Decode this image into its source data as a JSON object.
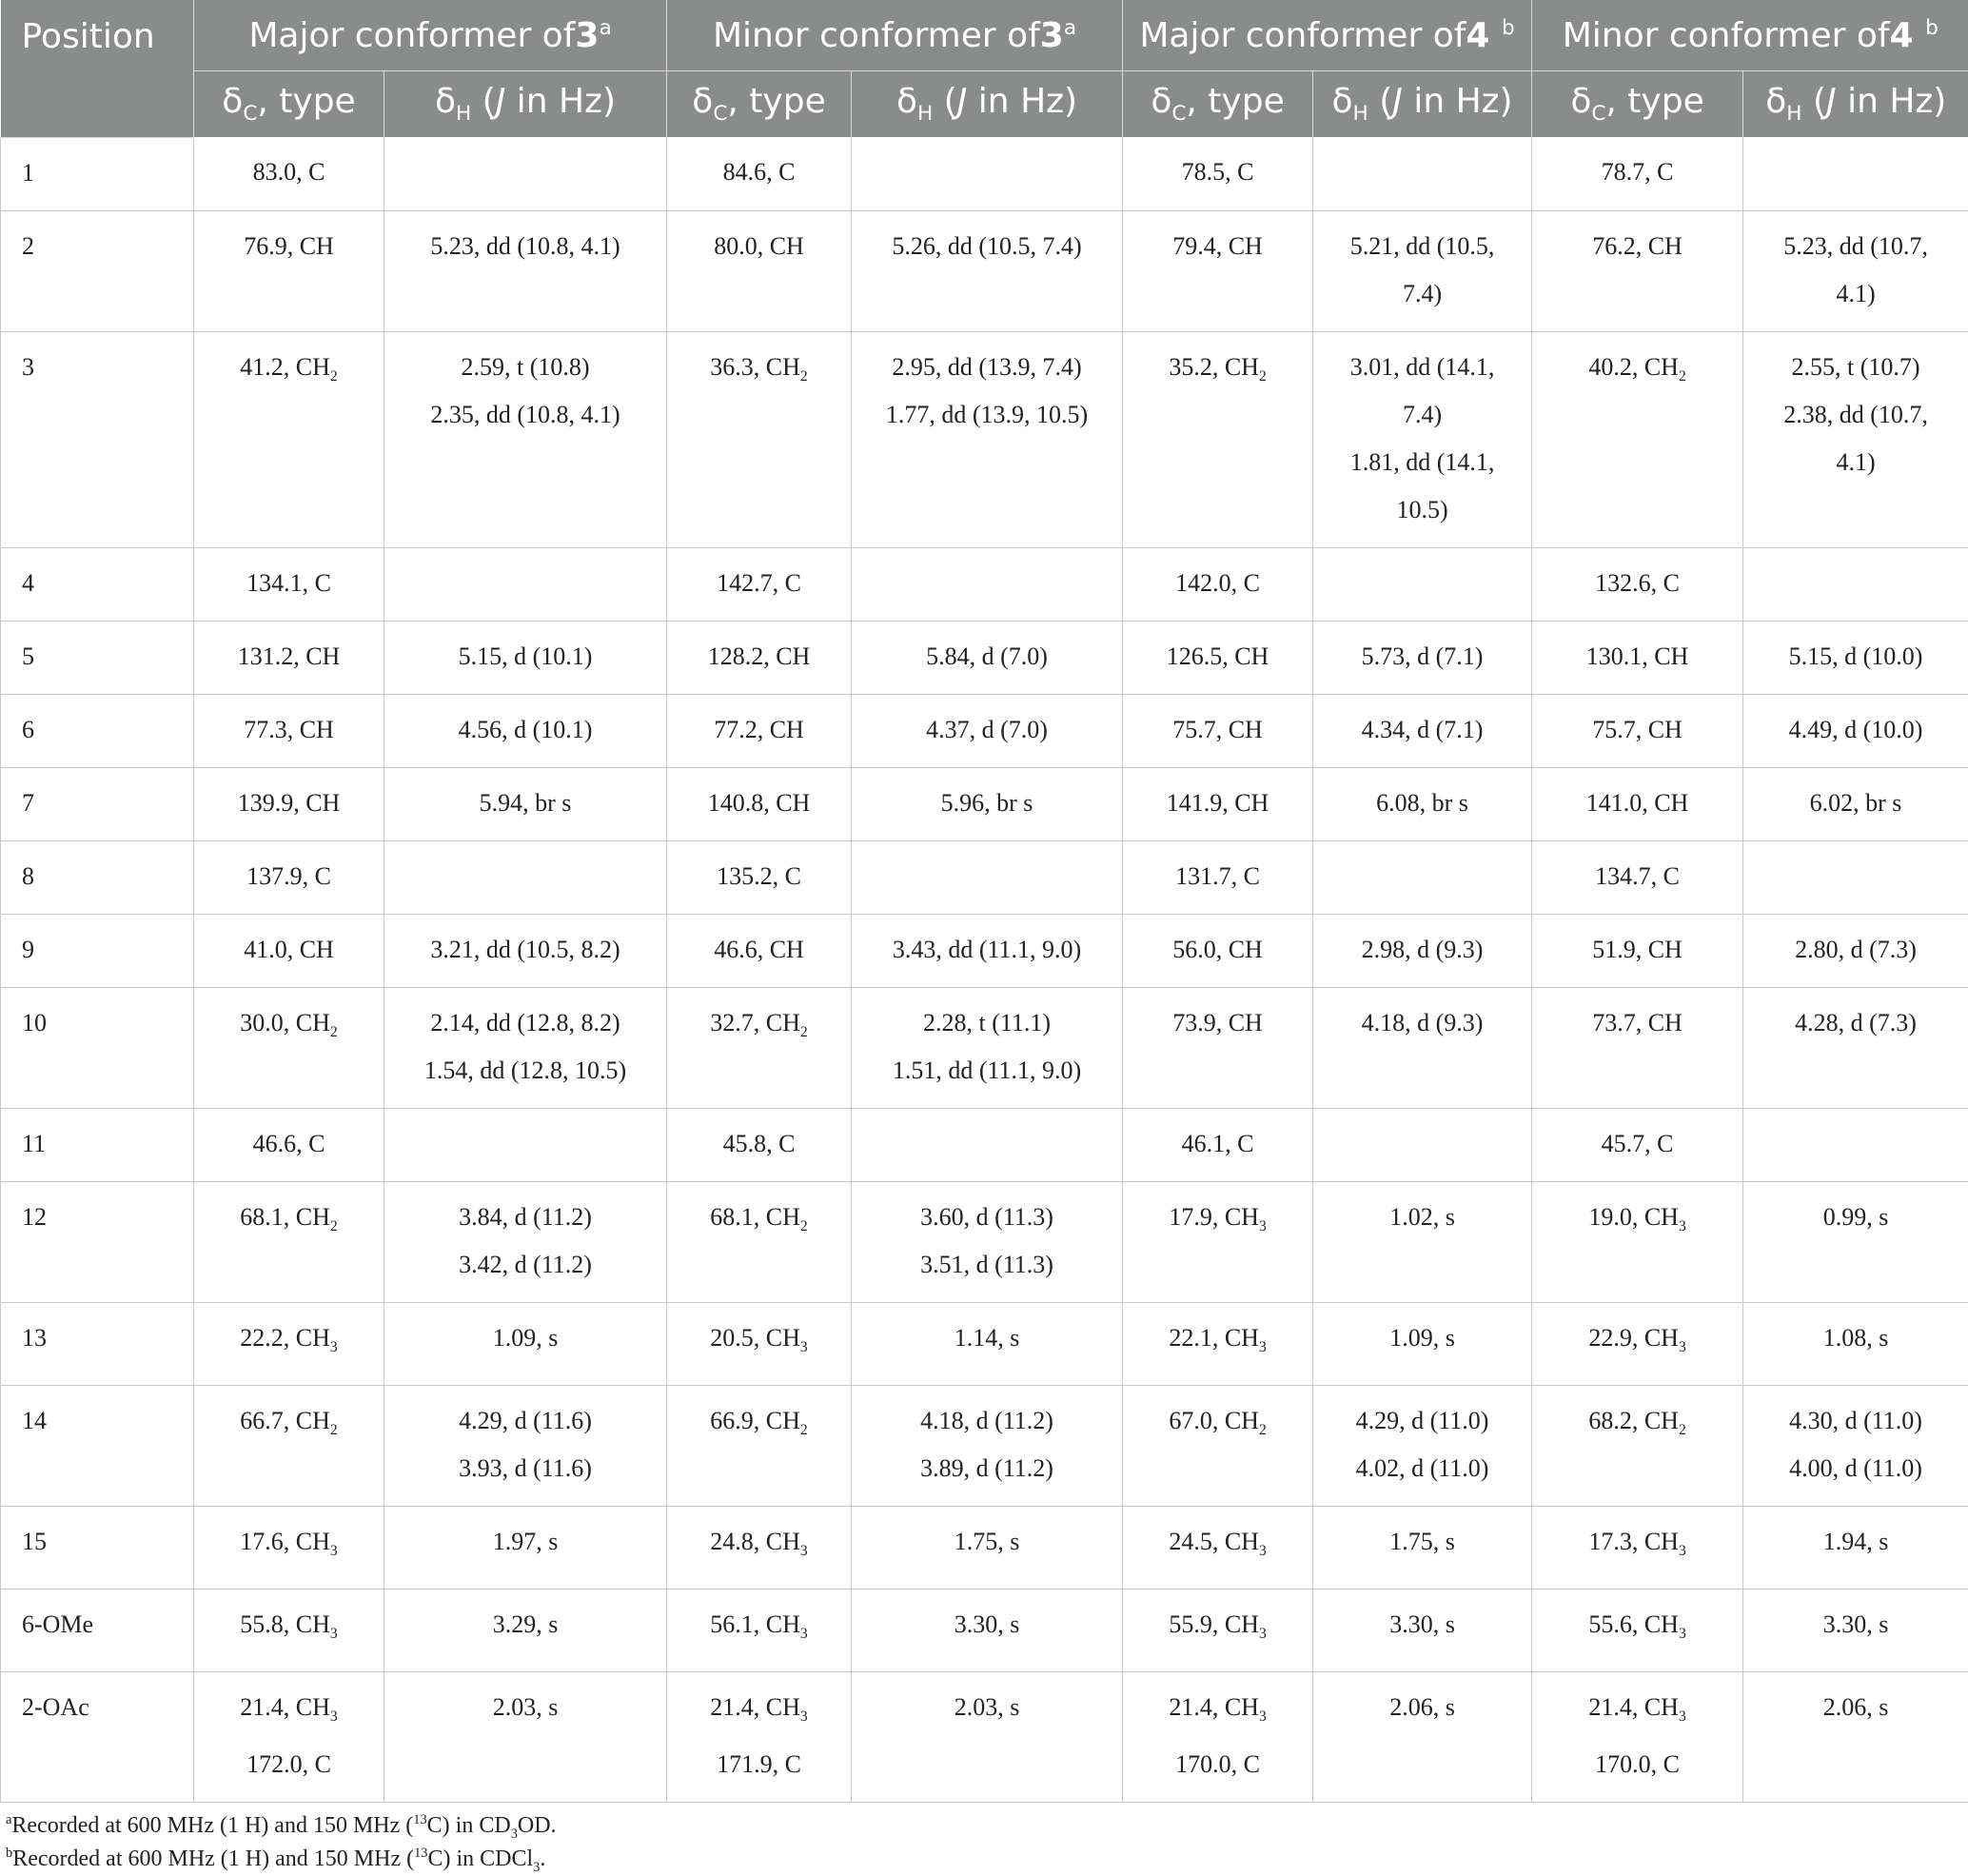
{
  "header": {
    "position": "Position",
    "groups": [
      {
        "pre": "Major conformer of",
        "compound": "3",
        "mark": "a"
      },
      {
        "pre": "Minor conformer of",
        "compound": "3",
        "mark": "a"
      },
      {
        "pre": "Major conformer of",
        "compound": "4 ",
        "mark": "b"
      },
      {
        "pre": "Minor conformer of",
        "compound": "4 ",
        "mark": "b"
      }
    ],
    "sub_c": {
      "delta": "δ",
      "subscript": "C",
      "rest": ", type"
    },
    "sub_h": {
      "delta": "δ",
      "subscript": "H",
      "pre": " (",
      "j": "J",
      "rest": " in Hz)"
    }
  },
  "rows": [
    {
      "pos": "1",
      "cells": [
        "83.0, C",
        "",
        "84.6, C",
        "",
        "78.5, C",
        "",
        "78.7, C",
        ""
      ]
    },
    {
      "pos": "2",
      "cells": [
        "76.9, CH",
        "5.23, dd (10.8, 4.1)",
        "80.0, CH",
        "5.26, dd (10.5, 7.4)",
        "79.4, CH",
        "5.21, dd (10.5,|7.4)",
        "76.2, CH",
        "5.23, dd (10.7,|4.1)"
      ]
    },
    {
      "pos": "3",
      "cells": [
        "41.2, CH2",
        "2.59, t (10.8)|2.35, dd (10.8, 4.1)",
        "36.3, CH2",
        "2.95, dd (13.9, 7.4)|1.77, dd (13.9, 10.5)",
        "35.2, CH2",
        "3.01, dd (14.1,|7.4)|1.81, dd (14.1,|10.5)",
        "40.2, CH2",
        "2.55, t (10.7)|2.38, dd (10.7,|4.1)"
      ]
    },
    {
      "pos": "4",
      "cells": [
        "134.1, C",
        "",
        "142.7, C",
        "",
        "142.0, C",
        "",
        "132.6, C",
        ""
      ]
    },
    {
      "pos": "5",
      "cells": [
        "131.2, CH",
        "5.15, d (10.1)",
        "128.2, CH",
        "5.84, d (7.0)",
        "126.5, CH",
        "5.73, d (7.1)",
        "130.1, CH",
        "5.15, d (10.0)"
      ]
    },
    {
      "pos": "6",
      "cells": [
        "77.3, CH",
        "4.56, d (10.1)",
        "77.2, CH",
        "4.37, d (7.0)",
        "75.7, CH",
        "4.34, d (7.1)",
        "75.7, CH",
        "4.49, d (10.0)"
      ]
    },
    {
      "pos": "7",
      "cells": [
        "139.9, CH",
        "5.94, br s",
        "140.8, CH",
        "5.96, br s",
        "141.9, CH",
        "6.08, br s",
        "141.0, CH",
        "6.02, br s"
      ]
    },
    {
      "pos": "8",
      "cells": [
        "137.9, C",
        "",
        "135.2, C",
        "",
        "131.7, C",
        "",
        "134.7, C",
        ""
      ]
    },
    {
      "pos": "9",
      "cells": [
        "41.0, CH",
        "3.21, dd (10.5, 8.2)",
        "46.6, CH",
        "3.43, dd (11.1, 9.0)",
        "56.0, CH",
        "2.98, d (9.3)",
        "51.9, CH",
        "2.80, d (7.3)"
      ]
    },
    {
      "pos": "10",
      "cells": [
        "30.0, CH2",
        "2.14, dd (12.8, 8.2)|1.54, dd (12.8, 10.5)",
        "32.7, CH2",
        "2.28, t (11.1)|1.51, dd (11.1, 9.0)",
        "73.9, CH",
        "4.18, d (9.3)",
        "73.7, CH",
        "4.28, d (7.3)"
      ]
    },
    {
      "pos": "11",
      "cells": [
        "46.6, C",
        "",
        "45.8, C",
        "",
        "46.1, C",
        "",
        "45.7, C",
        ""
      ]
    },
    {
      "pos": "12",
      "cells": [
        "68.1, CH2",
        "3.84, d (11.2)|3.42, d (11.2)",
        "68.1, CH2",
        "3.60, d (11.3)|3.51, d (11.3)",
        "17.9, CH3",
        "1.02, s",
        "19.0, CH3",
        "0.99, s"
      ]
    },
    {
      "pos": "13",
      "cells": [
        "22.2, CH3",
        "1.09, s",
        "20.5, CH3",
        "1.14, s",
        "22.1, CH3",
        "1.09, s",
        "22.9, CH3",
        "1.08, s"
      ]
    },
    {
      "pos": "14",
      "cells": [
        "66.7, CH2",
        "4.29, d (11.6)|3.93, d (11.6)",
        "66.9, CH2",
        "4.18, d (11.2)|3.89, d (11.2)",
        "67.0, CH2",
        "4.29, d (11.0)|4.02, d (11.0)",
        "68.2, CH2",
        "4.30, d (11.0)|4.00, d (11.0)"
      ]
    },
    {
      "pos": "15",
      "cells": [
        "17.6, CH3",
        "1.97, s",
        "24.8, CH3",
        "1.75, s",
        "24.5, CH3",
        "1.75, s",
        "17.3, CH3",
        "1.94, s"
      ]
    },
    {
      "pos": "6-OMe",
      "cells": [
        "55.8, CH3",
        "3.29, s",
        "56.1, CH3",
        "3.30, s",
        "55.9, CH3",
        "3.30, s",
        "55.6, CH3",
        "3.30, s"
      ]
    },
    {
      "pos": "2-OAc",
      "cells": [
        "21.4, CH3|172.0, C",
        "2.03, s",
        "21.4, CH3|171.9, C",
        "2.03, s",
        "21.4, CH3|170.0, C",
        "2.06, s",
        "21.4, CH3|170.0, C",
        "2.06, s"
      ]
    }
  ],
  "footnotes": [
    {
      "mark": "a",
      "text_a": "Recorded at 600 MHz (1 H) and 150 MHz (",
      "iso": "13",
      "text_b": "C) in CD",
      "sub": "3",
      "text_c": "OD."
    },
    {
      "mark": "b",
      "text_a": "Recorded at 600 MHz (1 H) and 150 MHz (",
      "iso": "13",
      "text_b": "C) in CDCl",
      "sub": "3",
      "text_c": "."
    }
  ],
  "colors": {
    "header_bg": "#8a8c8b",
    "grid": "#c8c8c8"
  }
}
